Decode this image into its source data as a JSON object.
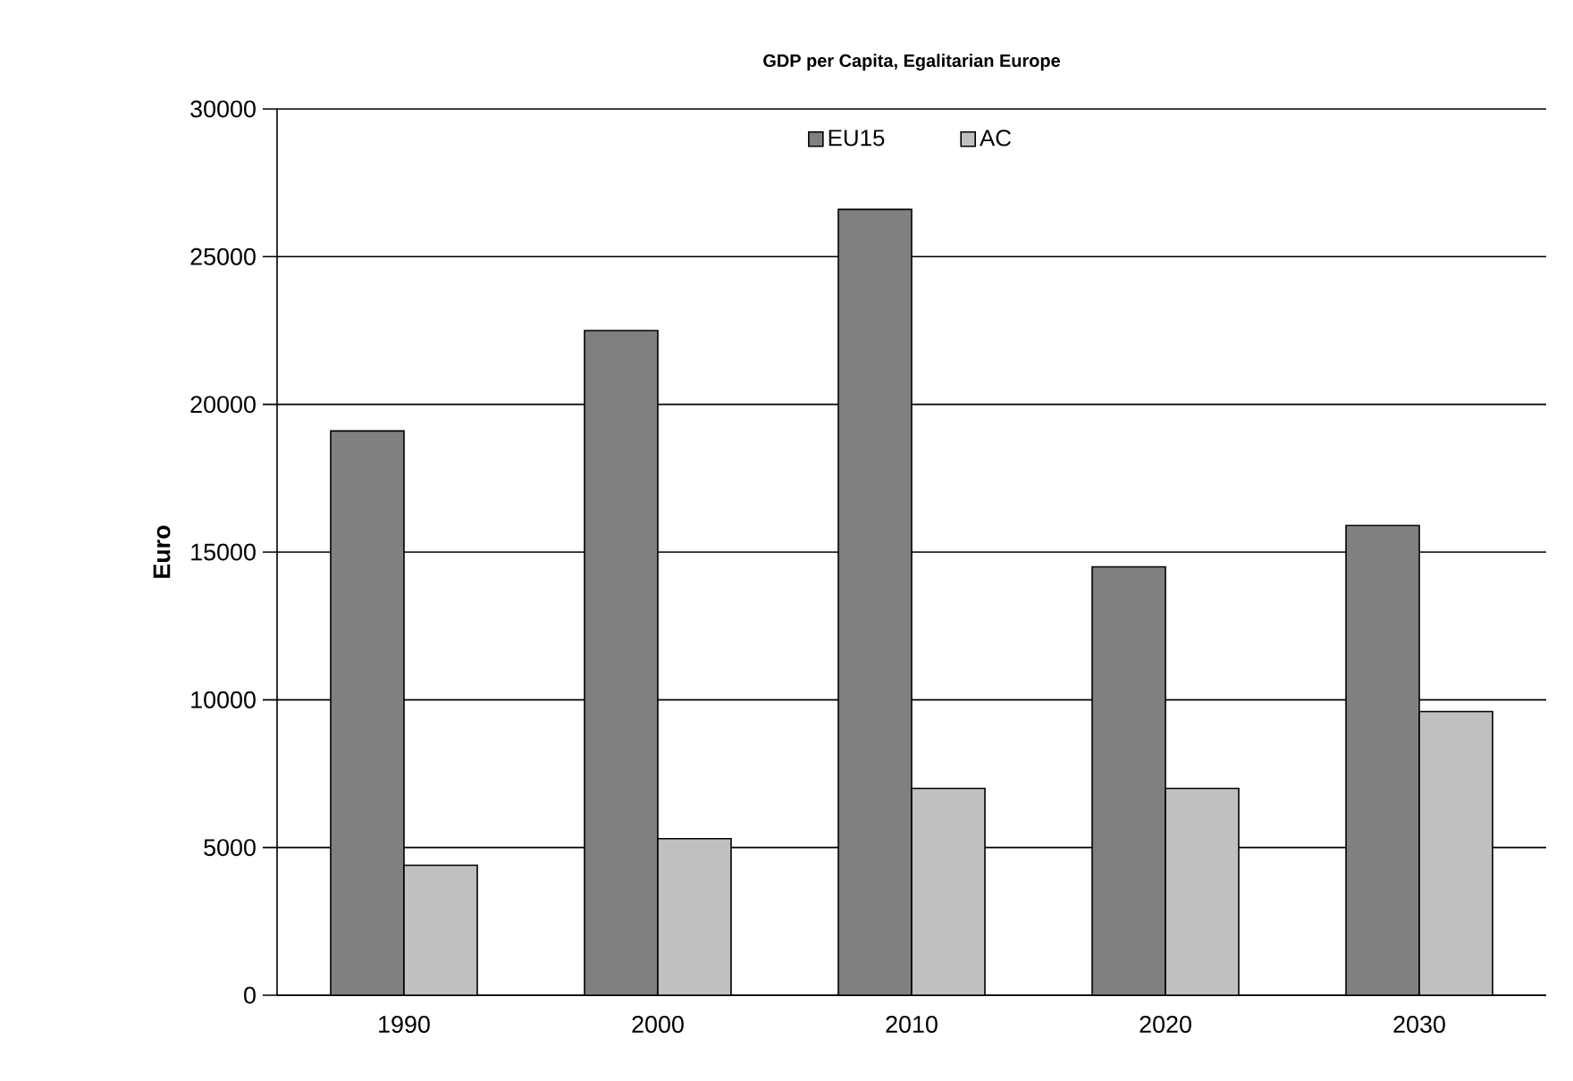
{
  "chart_data": {
    "type": "bar",
    "title": "GDP per Capita, Egalitarian Europe",
    "ylabel": "Euro",
    "categories": [
      "1990",
      "2000",
      "2010",
      "2020",
      "2030"
    ],
    "series": [
      {
        "name": "EU15",
        "color": "#808080",
        "values": [
          19100,
          22500,
          26600,
          14500,
          15900
        ]
      },
      {
        "name": "AC",
        "color": "#c0c0c0",
        "values": [
          4400,
          5300,
          7000,
          7000,
          9600
        ]
      }
    ],
    "ylim": [
      0,
      30000
    ],
    "yticks": [
      0,
      5000,
      10000,
      15000,
      20000,
      25000,
      30000
    ],
    "grid": "y",
    "legend": "top"
  }
}
